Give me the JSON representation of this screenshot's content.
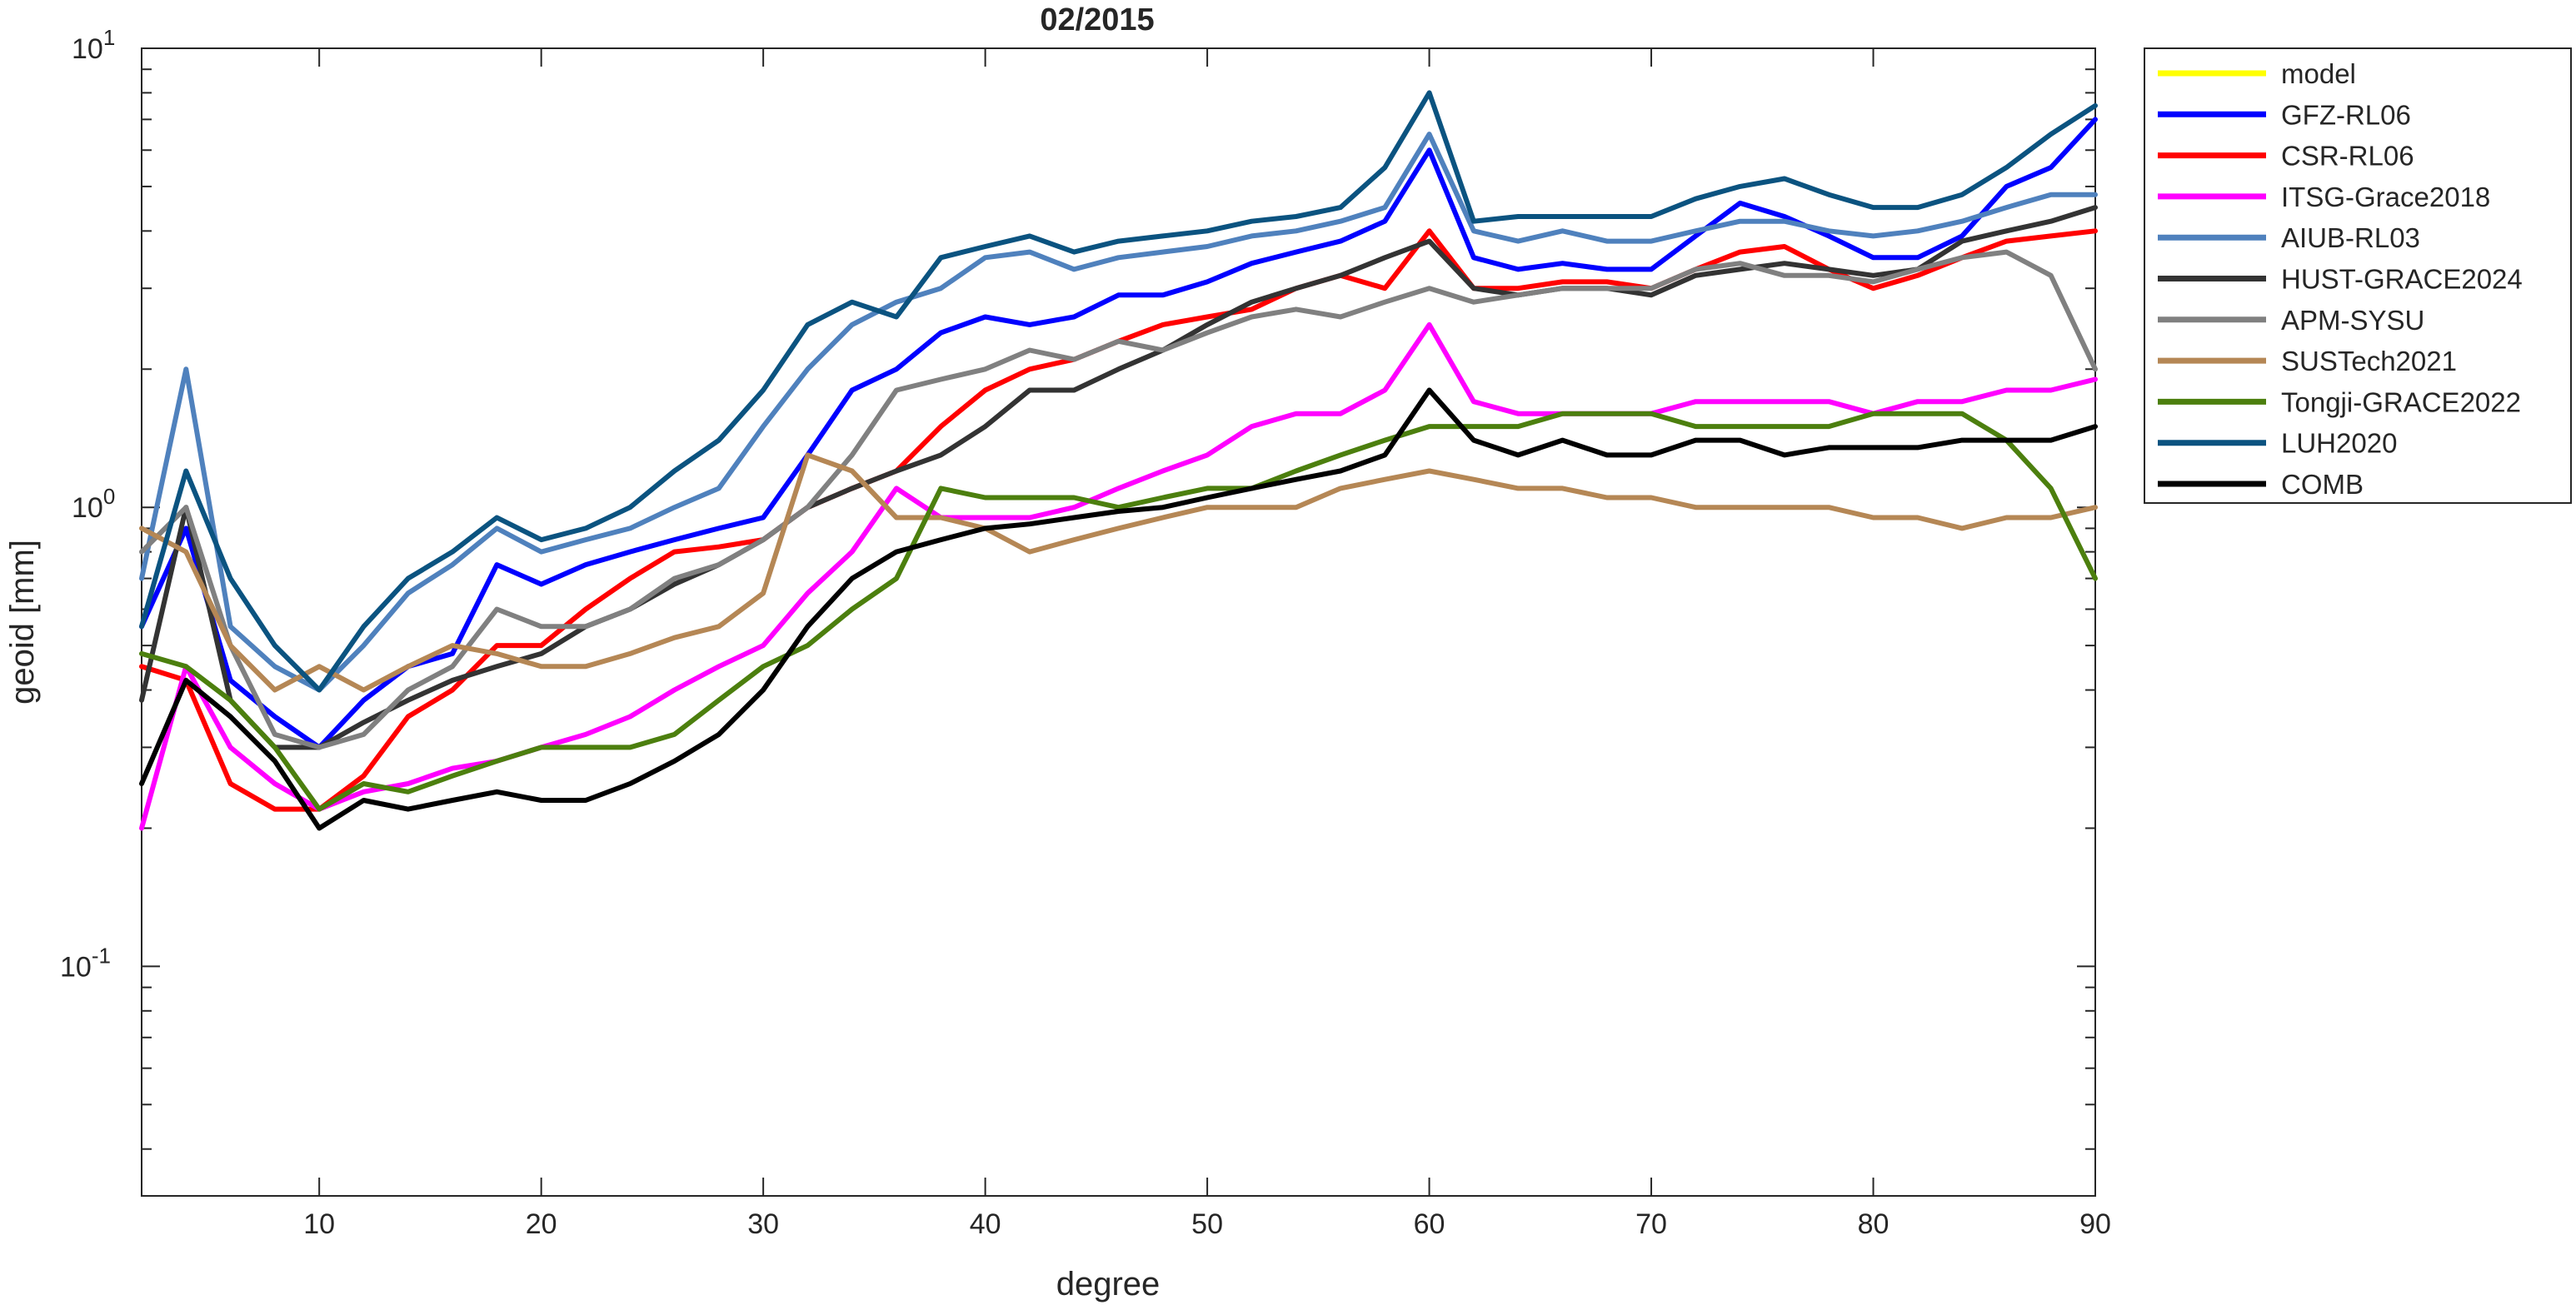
{
  "chart_data": {
    "type": "line",
    "title": "02/2015",
    "xlabel": "degree",
    "ylabel": "geoid [mm]",
    "xlim": [
      2,
      90
    ],
    "ylim": [
      0.03162,
      10
    ],
    "yscale": "log",
    "grid": false,
    "legend_position": "outside-top-right",
    "x_ticks": [
      10,
      20,
      30,
      40,
      50,
      60,
      70,
      80,
      90
    ],
    "x_tick_labels": [
      "10",
      "20",
      "30",
      "40",
      "50",
      "60",
      "70",
      "80",
      "90"
    ],
    "y_ticks": [
      {
        "value": 0.1,
        "base": "10",
        "exp": "-1"
      },
      {
        "value": 1,
        "label": "10",
        "exp": "0",
        "plain": "10⁰"
      },
      {
        "value": 10,
        "base": "10",
        "exp": "1"
      }
    ],
    "y_tick_plain_labels": [
      "10-1",
      "10⁰",
      "101"
    ],
    "x": [
      2,
      4,
      6,
      8,
      10,
      12,
      14,
      16,
      18,
      20,
      22,
      24,
      26,
      28,
      30,
      32,
      34,
      36,
      38,
      40,
      42,
      44,
      46,
      48,
      50,
      52,
      54,
      56,
      58,
      60,
      62,
      64,
      66,
      68,
      70,
      72,
      74,
      76,
      78,
      80,
      82,
      84,
      86,
      88,
      90
    ],
    "series": [
      {
        "name": "model",
        "color": "#FFFF00",
        "values": [
          null,
          null,
          null,
          null,
          null,
          null,
          null,
          null,
          null,
          null,
          null,
          null,
          null,
          null,
          null,
          null,
          null,
          null,
          null,
          null,
          null,
          null,
          null,
          null,
          null,
          null,
          null,
          null,
          null,
          null,
          null,
          null,
          null,
          null,
          null,
          null,
          null,
          null,
          null,
          null,
          null,
          null,
          null,
          null,
          null
        ]
      },
      {
        "name": "GFZ-RL06",
        "color": "#0000FF",
        "values": [
          0.55,
          0.9,
          0.42,
          0.35,
          0.3,
          0.38,
          0.45,
          0.48,
          0.75,
          0.68,
          0.75,
          0.8,
          0.85,
          0.9,
          0.95,
          1.3,
          1.8,
          2.0,
          2.4,
          2.6,
          2.5,
          2.6,
          2.9,
          2.9,
          3.1,
          3.4,
          3.6,
          3.8,
          4.2,
          6.0,
          3.5,
          3.3,
          3.4,
          3.3,
          3.3,
          3.9,
          4.6,
          4.3,
          3.9,
          3.5,
          3.5,
          3.9,
          5.0,
          5.5,
          7.0
        ]
      },
      {
        "name": "CSR-RL06",
        "color": "#FF0000",
        "values": [
          0.45,
          0.42,
          0.25,
          0.22,
          0.22,
          0.26,
          0.35,
          0.4,
          0.5,
          0.5,
          0.6,
          0.7,
          0.8,
          0.82,
          0.85,
          1.0,
          1.1,
          1.2,
          1.5,
          1.8,
          2.0,
          2.1,
          2.3,
          2.5,
          2.6,
          2.7,
          3.0,
          3.2,
          3.0,
          4.0,
          3.0,
          3.0,
          3.1,
          3.1,
          3.0,
          3.3,
          3.6,
          3.7,
          3.3,
          3.0,
          3.2,
          3.5,
          3.8,
          3.9,
          4.0
        ]
      },
      {
        "name": "ITSG-Grace2018",
        "color": "#FF00FF",
        "values": [
          0.2,
          0.45,
          0.3,
          0.25,
          0.22,
          0.24,
          0.25,
          0.27,
          0.28,
          0.3,
          0.32,
          0.35,
          0.4,
          0.45,
          0.5,
          0.65,
          0.8,
          1.1,
          0.95,
          0.95,
          0.95,
          1.0,
          1.1,
          1.2,
          1.3,
          1.5,
          1.6,
          1.6,
          1.8,
          2.5,
          1.7,
          1.6,
          1.6,
          1.6,
          1.6,
          1.7,
          1.7,
          1.7,
          1.7,
          1.6,
          1.7,
          1.7,
          1.8,
          1.8,
          1.9
        ]
      },
      {
        "name": "AIUB-RL03",
        "color": "#4F81BD",
        "values": [
          0.7,
          2.0,
          0.55,
          0.45,
          0.4,
          0.5,
          0.65,
          0.75,
          0.9,
          0.8,
          0.85,
          0.9,
          1.0,
          1.1,
          1.5,
          2.0,
          2.5,
          2.8,
          3.0,
          3.5,
          3.6,
          3.3,
          3.5,
          3.6,
          3.7,
          3.9,
          4.0,
          4.2,
          4.5,
          6.5,
          4.0,
          3.8,
          4.0,
          3.8,
          3.8,
          4.0,
          4.2,
          4.2,
          4.0,
          3.9,
          4.0,
          4.2,
          4.5,
          4.8,
          4.8
        ]
      },
      {
        "name": "HUST-GRACE2024",
        "color": "#333333",
        "values": [
          0.38,
          1.0,
          0.38,
          0.3,
          0.3,
          0.34,
          0.38,
          0.42,
          0.45,
          0.48,
          0.55,
          0.6,
          0.68,
          0.75,
          0.85,
          1.0,
          1.1,
          1.2,
          1.3,
          1.5,
          1.8,
          1.8,
          2.0,
          2.2,
          2.5,
          2.8,
          3.0,
          3.2,
          3.5,
          3.8,
          3.0,
          2.9,
          3.0,
          3.0,
          2.9,
          3.2,
          3.3,
          3.4,
          3.3,
          3.2,
          3.3,
          3.8,
          4.0,
          4.2,
          4.5
        ]
      },
      {
        "name": "APM-SYSU",
        "color": "#808080",
        "values": [
          0.8,
          1.0,
          0.5,
          0.32,
          0.3,
          0.32,
          0.4,
          0.45,
          0.6,
          0.55,
          0.55,
          0.6,
          0.7,
          0.75,
          0.85,
          1.0,
          1.3,
          1.8,
          1.9,
          2.0,
          2.2,
          2.1,
          2.3,
          2.2,
          2.4,
          2.6,
          2.7,
          2.6,
          2.8,
          3.0,
          2.8,
          2.9,
          3.0,
          3.0,
          3.0,
          3.3,
          3.4,
          3.2,
          3.2,
          3.1,
          3.3,
          3.5,
          3.6,
          3.2,
          2.0
        ]
      },
      {
        "name": "SUSTech2021",
        "color": "#B58755",
        "values": [
          0.9,
          0.8,
          0.5,
          0.4,
          0.45,
          0.4,
          0.45,
          0.5,
          0.48,
          0.45,
          0.45,
          0.48,
          0.52,
          0.55,
          0.65,
          1.3,
          1.2,
          0.95,
          0.95,
          0.9,
          0.8,
          0.85,
          0.9,
          0.95,
          1.0,
          1.0,
          1.0,
          1.1,
          1.15,
          1.2,
          1.15,
          1.1,
          1.1,
          1.05,
          1.05,
          1.0,
          1.0,
          1.0,
          1.0,
          0.95,
          0.95,
          0.9,
          0.95,
          0.95,
          1.0
        ]
      },
      {
        "name": "Tongji-GRACE2022",
        "color": "#4C7F0E",
        "values": [
          0.48,
          0.45,
          0.38,
          0.3,
          0.22,
          0.25,
          0.24,
          0.26,
          0.28,
          0.3,
          0.3,
          0.3,
          0.32,
          0.38,
          0.45,
          0.5,
          0.6,
          0.7,
          1.1,
          1.05,
          1.05,
          1.05,
          1.0,
          1.05,
          1.1,
          1.1,
          1.2,
          1.3,
          1.4,
          1.5,
          1.5,
          1.5,
          1.6,
          1.6,
          1.6,
          1.5,
          1.5,
          1.5,
          1.5,
          1.6,
          1.6,
          1.6,
          1.4,
          1.1,
          0.7
        ]
      },
      {
        "name": "LUH2020",
        "color": "#0B5380",
        "values": [
          0.55,
          1.2,
          0.7,
          0.5,
          0.4,
          0.55,
          0.7,
          0.8,
          0.95,
          0.85,
          0.9,
          1.0,
          1.2,
          1.4,
          1.8,
          2.5,
          2.8,
          2.6,
          3.5,
          3.7,
          3.9,
          3.6,
          3.8,
          3.9,
          4.0,
          4.2,
          4.3,
          4.5,
          5.5,
          8.0,
          4.2,
          4.3,
          4.3,
          4.3,
          4.3,
          4.7,
          5.0,
          5.2,
          4.8,
          4.5,
          4.5,
          4.8,
          5.5,
          6.5,
          7.5
        ]
      },
      {
        "name": "COMB",
        "color": "#000000",
        "values": [
          0.25,
          0.42,
          0.35,
          0.28,
          0.2,
          0.23,
          0.22,
          0.23,
          0.24,
          0.23,
          0.23,
          0.25,
          0.28,
          0.32,
          0.4,
          0.55,
          0.7,
          0.8,
          0.85,
          0.9,
          0.92,
          0.95,
          0.98,
          1.0,
          1.05,
          1.1,
          1.15,
          1.2,
          1.3,
          1.8,
          1.4,
          1.3,
          1.4,
          1.3,
          1.3,
          1.4,
          1.4,
          1.3,
          1.35,
          1.35,
          1.35,
          1.4,
          1.4,
          1.4,
          1.5
        ]
      }
    ]
  }
}
